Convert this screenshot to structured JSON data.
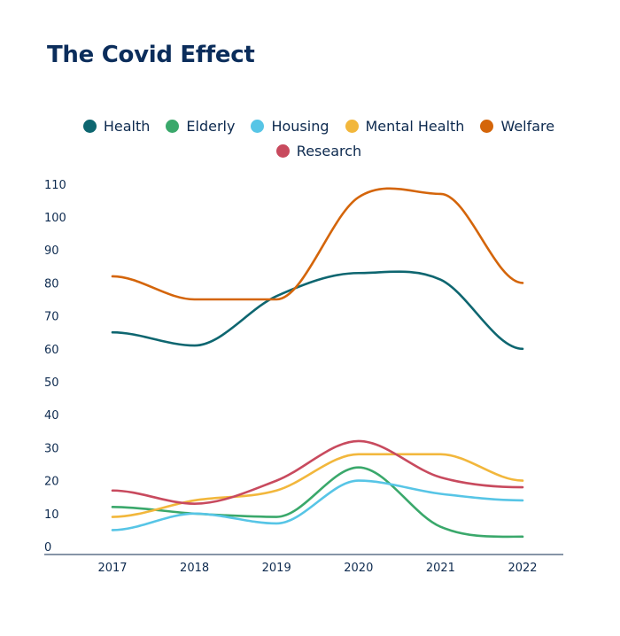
{
  "chart_data": {
    "type": "line",
    "title": "The Covid Effect",
    "categories": [
      "2017",
      "2018",
      "2019",
      "2020",
      "2021",
      "2022"
    ],
    "ylim": [
      0,
      110
    ],
    "yticks": [
      0,
      10,
      20,
      30,
      40,
      50,
      60,
      70,
      80,
      90,
      100,
      110
    ],
    "xlabel": "",
    "ylabel": "",
    "grid": false,
    "legend_position": "top-center",
    "series": [
      {
        "name": "Health",
        "color": "#0e6670",
        "values": [
          65,
          61,
          76,
          83,
          81,
          60
        ]
      },
      {
        "name": "Elderly",
        "color": "#3aa86b",
        "values": [
          12,
          10,
          9,
          24,
          6,
          3
        ]
      },
      {
        "name": "Housing",
        "color": "#57c5e6",
        "values": [
          5,
          10,
          7,
          20,
          16,
          14
        ]
      },
      {
        "name": "Mental Health",
        "color": "#f2b73c",
        "values": [
          9,
          14,
          17,
          28,
          28,
          20
        ]
      },
      {
        "name": "Welfare",
        "color": "#d4650a",
        "values": [
          82,
          75,
          75,
          106,
          107,
          80
        ]
      },
      {
        "name": "Research",
        "color": "#c84a5e",
        "values": [
          17,
          13,
          20,
          32,
          21,
          18
        ]
      }
    ]
  }
}
